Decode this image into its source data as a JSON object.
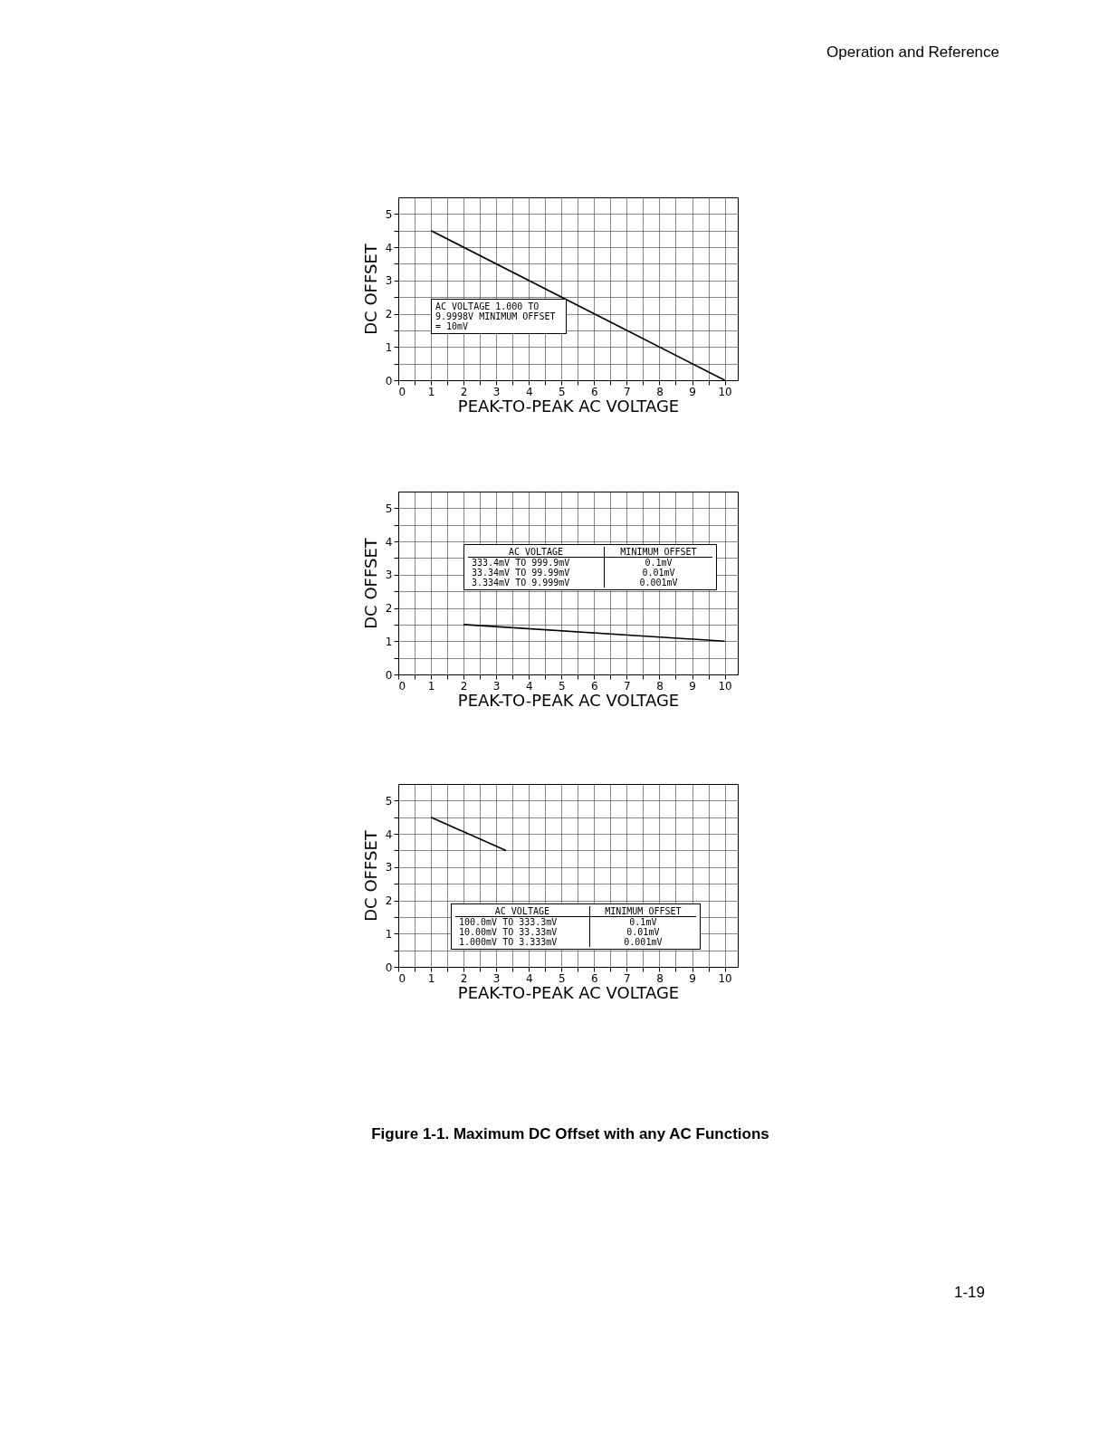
{
  "chart_data": [
    {
      "type": "line",
      "xlabel": "PEAK-TO-PEAK AC VOLTAGE",
      "ylabel": "DC OFFSET",
      "x": [
        1,
        10
      ],
      "values": [
        4.5,
        0
      ],
      "color": "#000000",
      "xlim": [
        0,
        10.4
      ],
      "ylim": [
        0,
        5.5
      ],
      "xticks": [
        0,
        {
          "value": 0.5,
          "label": null
        },
        1,
        {
          "value": 1.5,
          "label": null
        },
        2,
        {
          "value": 2.5,
          "label": null
        },
        3,
        {
          "value": 3.5,
          "label": null
        },
        4,
        {
          "value": 4.5,
          "label": null
        },
        5,
        {
          "value": 5.5,
          "label": null
        },
        6,
        {
          "value": 6.5,
          "label": null
        },
        7,
        {
          "value": 7.5,
          "label": null
        },
        8,
        {
          "value": 8.5,
          "label": null
        },
        9,
        {
          "value": 9.5,
          "label": null
        },
        10
      ],
      "yticks": [
        0,
        {
          "value": 0.5,
          "label": null
        },
        1,
        {
          "value": 1.5,
          "label": null
        },
        2,
        {
          "value": 2.5,
          "label": null
        },
        3,
        {
          "value": 3.5,
          "label": null
        },
        4,
        {
          "value": 4.5,
          "label": null
        },
        5
      ],
      "grid": true,
      "annotations": [
        "Operation and Reference",
        "AC VOLTAGE 1.000 TO 9.9998V MINIMUM OFFSET = 10mV"
      ]
    },
    {
      "type": "line",
      "xlabel": "PEAK-TO-PEAK AC VOLTAGE",
      "ylabel": "DC OFFSET",
      "x": [
        2,
        10
      ],
      "values": [
        1.5,
        1
      ],
      "color": "#000000",
      "xlim": [
        0,
        10.4
      ],
      "ylim": [
        0,
        5.5
      ],
      "xticks": [
        0,
        {
          "value": 0.5,
          "label": null
        },
        1,
        {
          "value": 1.5,
          "label": null
        },
        2,
        {
          "value": 2.5,
          "label": null
        },
        3,
        {
          "value": 3.5,
          "label": null
        },
        4,
        {
          "value": 4.5,
          "label": null
        },
        5,
        {
          "value": 5.5,
          "label": null
        },
        6,
        {
          "value": 6.5,
          "label": null
        },
        7,
        {
          "value": 7.5,
          "label": null
        },
        8,
        {
          "value": 8.5,
          "label": null
        },
        9,
        {
          "value": 9.5,
          "label": null
        },
        10
      ],
      "yticks": [
        0,
        {
          "value": 0.5,
          "label": null
        },
        1,
        {
          "value": 1.5,
          "label": null
        },
        2,
        {
          "value": 2.5,
          "label": null
        },
        3,
        {
          "value": 3.5,
          "label": null
        },
        4,
        {
          "value": 4.5,
          "label": null
        },
        5
      ],
      "grid": true,
      "annotations": [
        "AC VOLTAGE",
        "MINIMUM OFFSET",
        "333.4mV TO 999.9mV",
        "0.1mV",
        "33.34mV TO 99.99mV",
        "0.01mV",
        "3.334mV TO 9.999mV",
        "0.001mV"
      ]
    },
    {
      "type": "line",
      "xlabel": "PEAK-TO-PEAK AC VOLTAGE",
      "ylabel": "DC OFFSET",
      "x": [
        1,
        3.3
      ],
      "values": [
        4.5,
        3.5
      ],
      "color": "#000000",
      "xlim": [
        0,
        10.4
      ],
      "ylim": [
        0,
        5.5
      ],
      "xticks": [
        0,
        {
          "value": 0.5,
          "label": null
        },
        1,
        {
          "value": 1.5,
          "label": null
        },
        2,
        {
          "value": 2.5,
          "label": null
        },
        3,
        {
          "value": 3.5,
          "label": null
        },
        4,
        {
          "value": 4.5,
          "label": null
        },
        5,
        {
          "value": 5.5,
          "label": null
        },
        6,
        {
          "value": 6.5,
          "label": null
        },
        7,
        {
          "value": 7.5,
          "label": null
        },
        8,
        {
          "value": 8.5,
          "label": null
        },
        9,
        {
          "value": 9.5,
          "label": null
        },
        10
      ],
      "yticks": [
        0,
        {
          "value": 0.5,
          "label": null
        },
        1,
        {
          "value": 1.5,
          "label": null
        },
        2,
        {
          "value": 2.5,
          "label": null
        },
        3,
        {
          "value": 3.5,
          "label": null
        },
        4,
        {
          "value": 4.5,
          "label": null
        },
        5
      ],
      "grid": true,
      "annotations": [
        "AC VOLTAGE",
        "MINIMUM OFFSET",
        "100.0mV TO 333.3mV",
        "0.1mV",
        "10.00mV TO 33.33mV",
        "0.01mV",
        "1.000mV TO 3.333mV",
        "0.001mV",
        "Figure 1-1.  Maximum DC Offset with any AC Functions",
        "1-19"
      ]
    }
  ]
}
